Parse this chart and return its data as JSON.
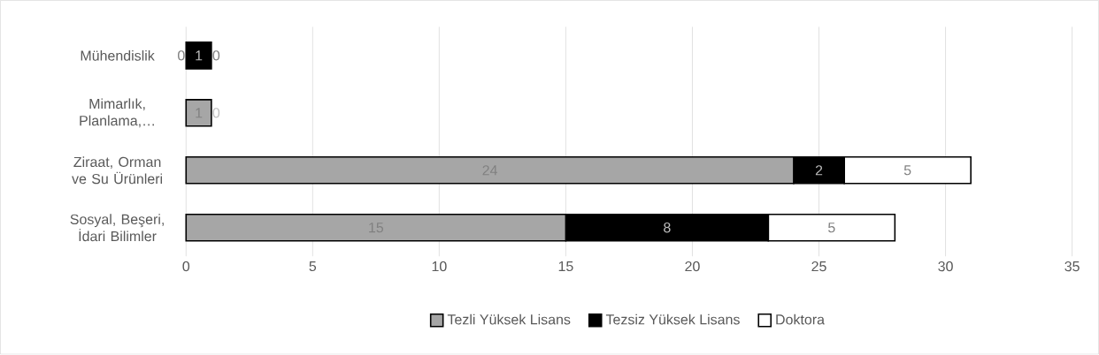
{
  "chart_data": {
    "type": "bar",
    "orientation": "horizontal",
    "stacked": true,
    "categories": [
      "Mühendislik",
      "Mimarlık, Planlama,…",
      "Ziraat, Orman ve Su Ürünleri",
      "Sosyal, Beşeri, İdari Bilimler"
    ],
    "series": [
      {
        "name": "Tezli Yüksek Lisans",
        "color": "#a6a6a6",
        "values": [
          0,
          1,
          24,
          15
        ],
        "value_labels": [
          "0",
          "1",
          "24",
          "15"
        ]
      },
      {
        "name": "Tezsiz Yüksek Lisans",
        "color": "#000000",
        "values": [
          1,
          0,
          2,
          8
        ],
        "value_labels": [
          "1",
          "0",
          "2",
          "8"
        ]
      },
      {
        "name": "Doktora",
        "color": "#ffffff",
        "values": [
          0,
          0,
          5,
          5
        ],
        "value_labels": [
          "0",
          null,
          "5",
          "5"
        ]
      }
    ],
    "xlim": [
      0,
      35
    ],
    "xticks": [
      0,
      5,
      10,
      15,
      20,
      25,
      30,
      35
    ],
    "grid": "x",
    "legend": "bottom"
  }
}
